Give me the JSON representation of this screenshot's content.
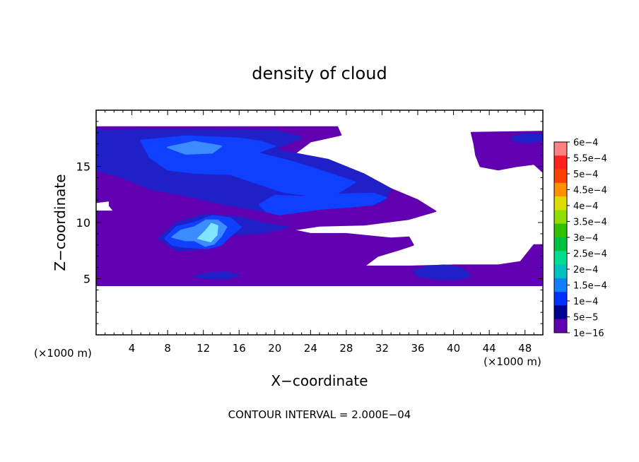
{
  "chart_data": {
    "type": "heatmap",
    "title": "density of cloud",
    "xlabel": "X−coordinate",
    "ylabel": "Z−coordinate",
    "x_unit_left": "(×1000 m)",
    "x_unit_right": "(×1000 m)",
    "footer": "CONTOUR INTERVAL = 2.000E−04",
    "xlim": [
      0,
      50
    ],
    "ylim": [
      0,
      20
    ],
    "x_ticks": [
      4,
      8,
      12,
      16,
      20,
      24,
      28,
      32,
      36,
      40,
      44,
      48
    ],
    "y_ticks": [
      5,
      10,
      15
    ],
    "colorbar": {
      "labels": [
        "6e−4",
        "5.5e−4",
        "5e−4",
        "4.5e−4",
        "4e−4",
        "3.5e−4",
        "3e−4",
        "2.5e−4",
        "2e−4",
        "1.5e−4",
        "1e−4",
        "5e−5",
        "1e−16"
      ],
      "colors": [
        "#ff8080",
        "#ff2020",
        "#ff4000",
        "#ff9000",
        "#dddd00",
        "#90dd00",
        "#30c000",
        "#00c040",
        "#00dd90",
        "#00c0c0",
        "#1080ff",
        "#0030ff",
        "#000090",
        "#6000b0"
      ]
    },
    "base_color": "#6000b0",
    "regions": [
      {
        "level": "1e-16",
        "color": "#6000b0",
        "points": [
          [
            0,
            18.5
          ],
          [
            27,
            18.5
          ],
          [
            27.4,
            17.8
          ],
          [
            24,
            17.2
          ],
          [
            22,
            16
          ],
          [
            25,
            15.5
          ],
          [
            30,
            14
          ],
          [
            33,
            13
          ],
          [
            36,
            12
          ],
          [
            38,
            11
          ],
          [
            35,
            10.3
          ],
          [
            30,
            9.8
          ],
          [
            25,
            9.7
          ],
          [
            22.5,
            9.4
          ],
          [
            21,
            9.5
          ],
          [
            24,
            9
          ],
          [
            28,
            9
          ],
          [
            33,
            8.6
          ],
          [
            35,
            8.7
          ],
          [
            35.5,
            8
          ],
          [
            34,
            7.6
          ],
          [
            31.5,
            7
          ],
          [
            30,
            6.1
          ],
          [
            35,
            6.1
          ],
          [
            40,
            6.2
          ],
          [
            45,
            6.2
          ],
          [
            47.5,
            6.5
          ],
          [
            48,
            7
          ],
          [
            49,
            8
          ],
          [
            50,
            8
          ],
          [
            50,
            4.4
          ],
          [
            0,
            4.4
          ],
          [
            0,
            11
          ],
          [
            2,
            11
          ],
          [
            1.5,
            11.5
          ],
          [
            1.5,
            12
          ],
          [
            3,
            12.5
          ],
          [
            5,
            13.5
          ],
          [
            4,
            12.7
          ],
          [
            2,
            12
          ],
          [
            0,
            11.8
          ]
        ]
      },
      {
        "level": "1e-16",
        "color": "#6000b0",
        "points": [
          [
            42,
            18
          ],
          [
            50,
            18.1
          ],
          [
            50,
            14.5
          ],
          [
            49,
            15.2
          ],
          [
            47,
            15
          ],
          [
            45,
            14.7
          ],
          [
            43,
            15
          ],
          [
            42.5,
            16
          ],
          [
            42.3,
            17
          ]
        ]
      },
      {
        "level": "1e-16",
        "color": "#6000b0",
        "points": [
          [
            5,
            9.5
          ],
          [
            12,
            9.2
          ],
          [
            20,
            8.6
          ],
          [
            21,
            7.6
          ],
          [
            18,
            7.2
          ],
          [
            15,
            7.6
          ],
          [
            13,
            7.5
          ],
          [
            11,
            7.4
          ],
          [
            9,
            7.6
          ],
          [
            6,
            7.6
          ],
          [
            5,
            8
          ]
        ]
      },
      {
        "level": "5e-5",
        "color": "#2020c8",
        "points": [
          [
            0,
            18.2
          ],
          [
            8,
            18.3
          ],
          [
            20,
            18.2
          ],
          [
            23,
            17.6
          ],
          [
            20,
            16.5
          ],
          [
            26,
            15.6
          ],
          [
            30,
            14.3
          ],
          [
            33,
            13
          ],
          [
            32,
            11.8
          ],
          [
            28,
            11.5
          ],
          [
            24,
            11.2
          ],
          [
            19,
            11
          ],
          [
            16.5,
            11.3
          ],
          [
            14,
            11.7
          ],
          [
            10,
            12.4
          ],
          [
            6,
            13
          ],
          [
            3,
            14
          ],
          [
            0,
            14.7
          ]
        ]
      },
      {
        "level": "5e-5",
        "color": "#2020c8",
        "points": [
          [
            7,
            8.6
          ],
          [
            9,
            10
          ],
          [
            12,
            10.7
          ],
          [
            16,
            10.5
          ],
          [
            19,
            9.9
          ],
          [
            21.5,
            9.6
          ],
          [
            19,
            9.1
          ],
          [
            15,
            8.9
          ],
          [
            13.5,
            7.9
          ],
          [
            11,
            7.6
          ],
          [
            9,
            7.5
          ]
        ]
      },
      {
        "level": "5e-5",
        "color": "#2020c8",
        "points": [
          [
            46.5,
            17.6
          ],
          [
            48,
            17.9
          ],
          [
            50,
            17.8
          ],
          [
            50,
            17.3
          ],
          [
            48.5,
            17.1
          ],
          [
            47,
            17.2
          ]
        ]
      },
      {
        "level": "5e-5",
        "color": "#2020c8",
        "points": [
          [
            35.5,
            5.7
          ],
          [
            37,
            6.1
          ],
          [
            39,
            6.2
          ],
          [
            41,
            5.9
          ],
          [
            42,
            5.2
          ],
          [
            40,
            4.9
          ],
          [
            38,
            5
          ],
          [
            36,
            5.2
          ]
        ]
      },
      {
        "level": "5e-5",
        "color": "#2020c8",
        "points": [
          [
            11,
            5.2
          ],
          [
            12.5,
            5.5
          ],
          [
            14.5,
            5.6
          ],
          [
            16,
            5.3
          ],
          [
            14.5,
            5
          ],
          [
            12.5,
            5
          ]
        ]
      },
      {
        "level": "1e-4",
        "color": "#1040ff",
        "points": [
          [
            5,
            17.3
          ],
          [
            10,
            17.7
          ],
          [
            16,
            17.5
          ],
          [
            18.5,
            17.2
          ],
          [
            20,
            16.8
          ],
          [
            18,
            16.2
          ],
          [
            22,
            15.4
          ],
          [
            26,
            14.4
          ],
          [
            29,
            13.6
          ],
          [
            27,
            12.6
          ],
          [
            24,
            12.4
          ],
          [
            21,
            12.7
          ],
          [
            18,
            13.5
          ],
          [
            15,
            14.3
          ],
          [
            11,
            14.4
          ],
          [
            8,
            14.7
          ],
          [
            6,
            15.8
          ]
        ]
      },
      {
        "level": "1e-4",
        "color": "#1040ff",
        "points": [
          [
            18.3,
            11.6
          ],
          [
            20,
            12.4
          ],
          [
            23,
            12.3
          ],
          [
            27,
            12.5
          ],
          [
            31,
            12.6
          ],
          [
            32.5,
            12.2
          ],
          [
            31,
            11.6
          ],
          [
            28.5,
            11.4
          ],
          [
            25,
            11.2
          ],
          [
            20.5,
            10.7
          ],
          [
            19,
            11
          ]
        ]
      },
      {
        "level": "1e-4",
        "color": "#1040ff",
        "points": [
          [
            7.7,
            8.6
          ],
          [
            9,
            9.6
          ],
          [
            11,
            10
          ],
          [
            13,
            10.6
          ],
          [
            15,
            10.4
          ],
          [
            16.2,
            9.6
          ],
          [
            15,
            8.8
          ],
          [
            14,
            8
          ],
          [
            12.5,
            7.7
          ],
          [
            10,
            7.8
          ],
          [
            8.5,
            8
          ]
        ]
      },
      {
        "level": "1.5e-4",
        "color": "#3c8cff",
        "points": [
          [
            8.5,
            8.7
          ],
          [
            9.5,
            9.3
          ],
          [
            11,
            9.6
          ],
          [
            12.3,
            10.2
          ],
          [
            13.6,
            10.2
          ],
          [
            14.6,
            9.6
          ],
          [
            14,
            8.8
          ],
          [
            13.2,
            8.1
          ],
          [
            12.2,
            7.9
          ],
          [
            11,
            8.4
          ],
          [
            10,
            8.4
          ]
        ]
      },
      {
        "level": "1.5e-4",
        "color": "#3c8cff",
        "points": [
          [
            8,
            16.7
          ],
          [
            11,
            17.2
          ],
          [
            14,
            16.8
          ],
          [
            13,
            16.2
          ],
          [
            10,
            16.1
          ]
        ]
      },
      {
        "level": "2e-4",
        "color": "#80e6ff",
        "points": [
          [
            11.4,
            8.6
          ],
          [
            12.2,
            9.2
          ],
          [
            12.9,
            9.9
          ],
          [
            13.6,
            9.7
          ],
          [
            13.5,
            8.9
          ],
          [
            12.8,
            8.3
          ]
        ]
      }
    ]
  }
}
